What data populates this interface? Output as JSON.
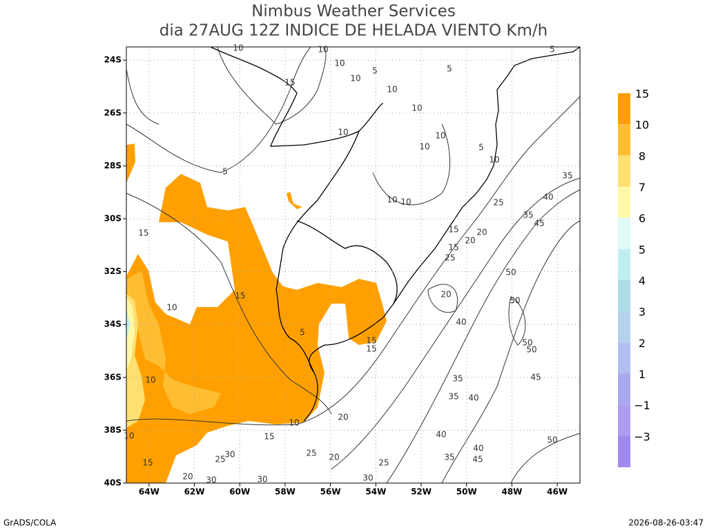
{
  "title": "Nimbus Weather Services",
  "subtitle": "dia 27AUG 12Z INDICE DE HELADA VIENTO Km/h",
  "map": {
    "lonlim": [
      -65,
      -45
    ],
    "latlim": [
      -23.5,
      -40
    ],
    "lonticks": [
      {
        "value": -64,
        "label": "64W"
      },
      {
        "value": -62,
        "label": "62W"
      },
      {
        "value": -60,
        "label": "60W"
      },
      {
        "value": -58,
        "label": "58W"
      },
      {
        "value": -56,
        "label": "56W"
      },
      {
        "value": -54,
        "label": "54W"
      },
      {
        "value": -52,
        "label": "52W"
      },
      {
        "value": -50,
        "label": "50W"
      },
      {
        "value": -48,
        "label": "48W"
      },
      {
        "value": -46,
        "label": "46W"
      }
    ],
    "latticks": [
      {
        "value": -24,
        "label": "24S"
      },
      {
        "value": -26,
        "label": "26S"
      },
      {
        "value": -28,
        "label": "28S"
      },
      {
        "value": -30,
        "label": "30S"
      },
      {
        "value": -32,
        "label": "32S"
      },
      {
        "value": -34,
        "label": "34S"
      },
      {
        "value": -36,
        "label": "36S"
      },
      {
        "value": -38,
        "label": "38S"
      },
      {
        "value": -40,
        "label": "40S"
      }
    ],
    "grid": true,
    "contour_labels": [
      10,
      10,
      10,
      10,
      15,
      10,
      10,
      5,
      5,
      5,
      10,
      10,
      10,
      5,
      10,
      5,
      10,
      10,
      35,
      40,
      25,
      35,
      45,
      15,
      15,
      20,
      20,
      25,
      50,
      20,
      50,
      40,
      50,
      50,
      45,
      35,
      35,
      40,
      40,
      50,
      40,
      35,
      45,
      15,
      10,
      15,
      5,
      10,
      10,
      15,
      20,
      15,
      15,
      25,
      20,
      25,
      30,
      30,
      25,
      15,
      20,
      30,
      30,
      10
    ]
  },
  "colorbar": {
    "levels": [
      15,
      10,
      8,
      7,
      6,
      5,
      4,
      3,
      2,
      1,
      {
        "value": -1,
        "label": "−1"
      },
      {
        "value": -3,
        "label": "−3"
      }
    ],
    "colors": [
      "#ffa000",
      "#ffbe32",
      "#ffe070",
      "#fff8a8",
      "#e1fafa",
      "#c0eeee",
      "#b0dce8",
      "#b4d2ee",
      "#b0bef0",
      "#aaa8ee",
      "#b09cee",
      "#a088ee"
    ]
  },
  "footer": {
    "left": "GrADS/COLA",
    "right": "2026-08-26-03:47"
  }
}
